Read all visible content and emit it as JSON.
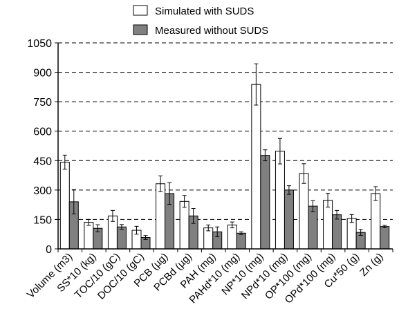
{
  "chart_data": {
    "type": "bar",
    "title": "",
    "xlabel": "",
    "ylabel": "",
    "ylim": [
      0,
      1050
    ],
    "yticks": [
      0,
      150,
      300,
      450,
      600,
      750,
      900,
      1050
    ],
    "grid": "horizontal dashed",
    "legend_position": "top-center",
    "categories": [
      "Volume (m3)",
      "SS*10 (kg)",
      "TOC/10 (gC)",
      "DOC/10 (gC)",
      "PCB (µg)",
      "PCBd (µg)",
      "PAH (mg)",
      "PAHd*10 (mg)",
      "NP*10 (mg)",
      "NPd*10 (mg)",
      "OP*100 (mg)",
      "OPd*100 (mg)",
      "Cu*50 (g)",
      "Zn (g)"
    ],
    "series": [
      {
        "name": "Simulated with SUDS",
        "color": "#ffffff",
        "values": [
          442,
          135,
          168,
          95,
          332,
          242,
          107,
          122,
          838,
          498,
          384,
          248,
          155,
          282
        ],
        "error": [
          36,
          15,
          28,
          20,
          40,
          30,
          15,
          15,
          105,
          65,
          50,
          35,
          20,
          35
        ]
      },
      {
        "name": "Measured without SUDS",
        "color": "#808080",
        "values": [
          240,
          105,
          112,
          58,
          282,
          168,
          87,
          80,
          477,
          300,
          218,
          174,
          84,
          114
        ],
        "error": [
          62,
          18,
          12,
          10,
          55,
          38,
          25,
          7,
          28,
          22,
          28,
          22,
          15,
          6
        ]
      }
    ]
  }
}
